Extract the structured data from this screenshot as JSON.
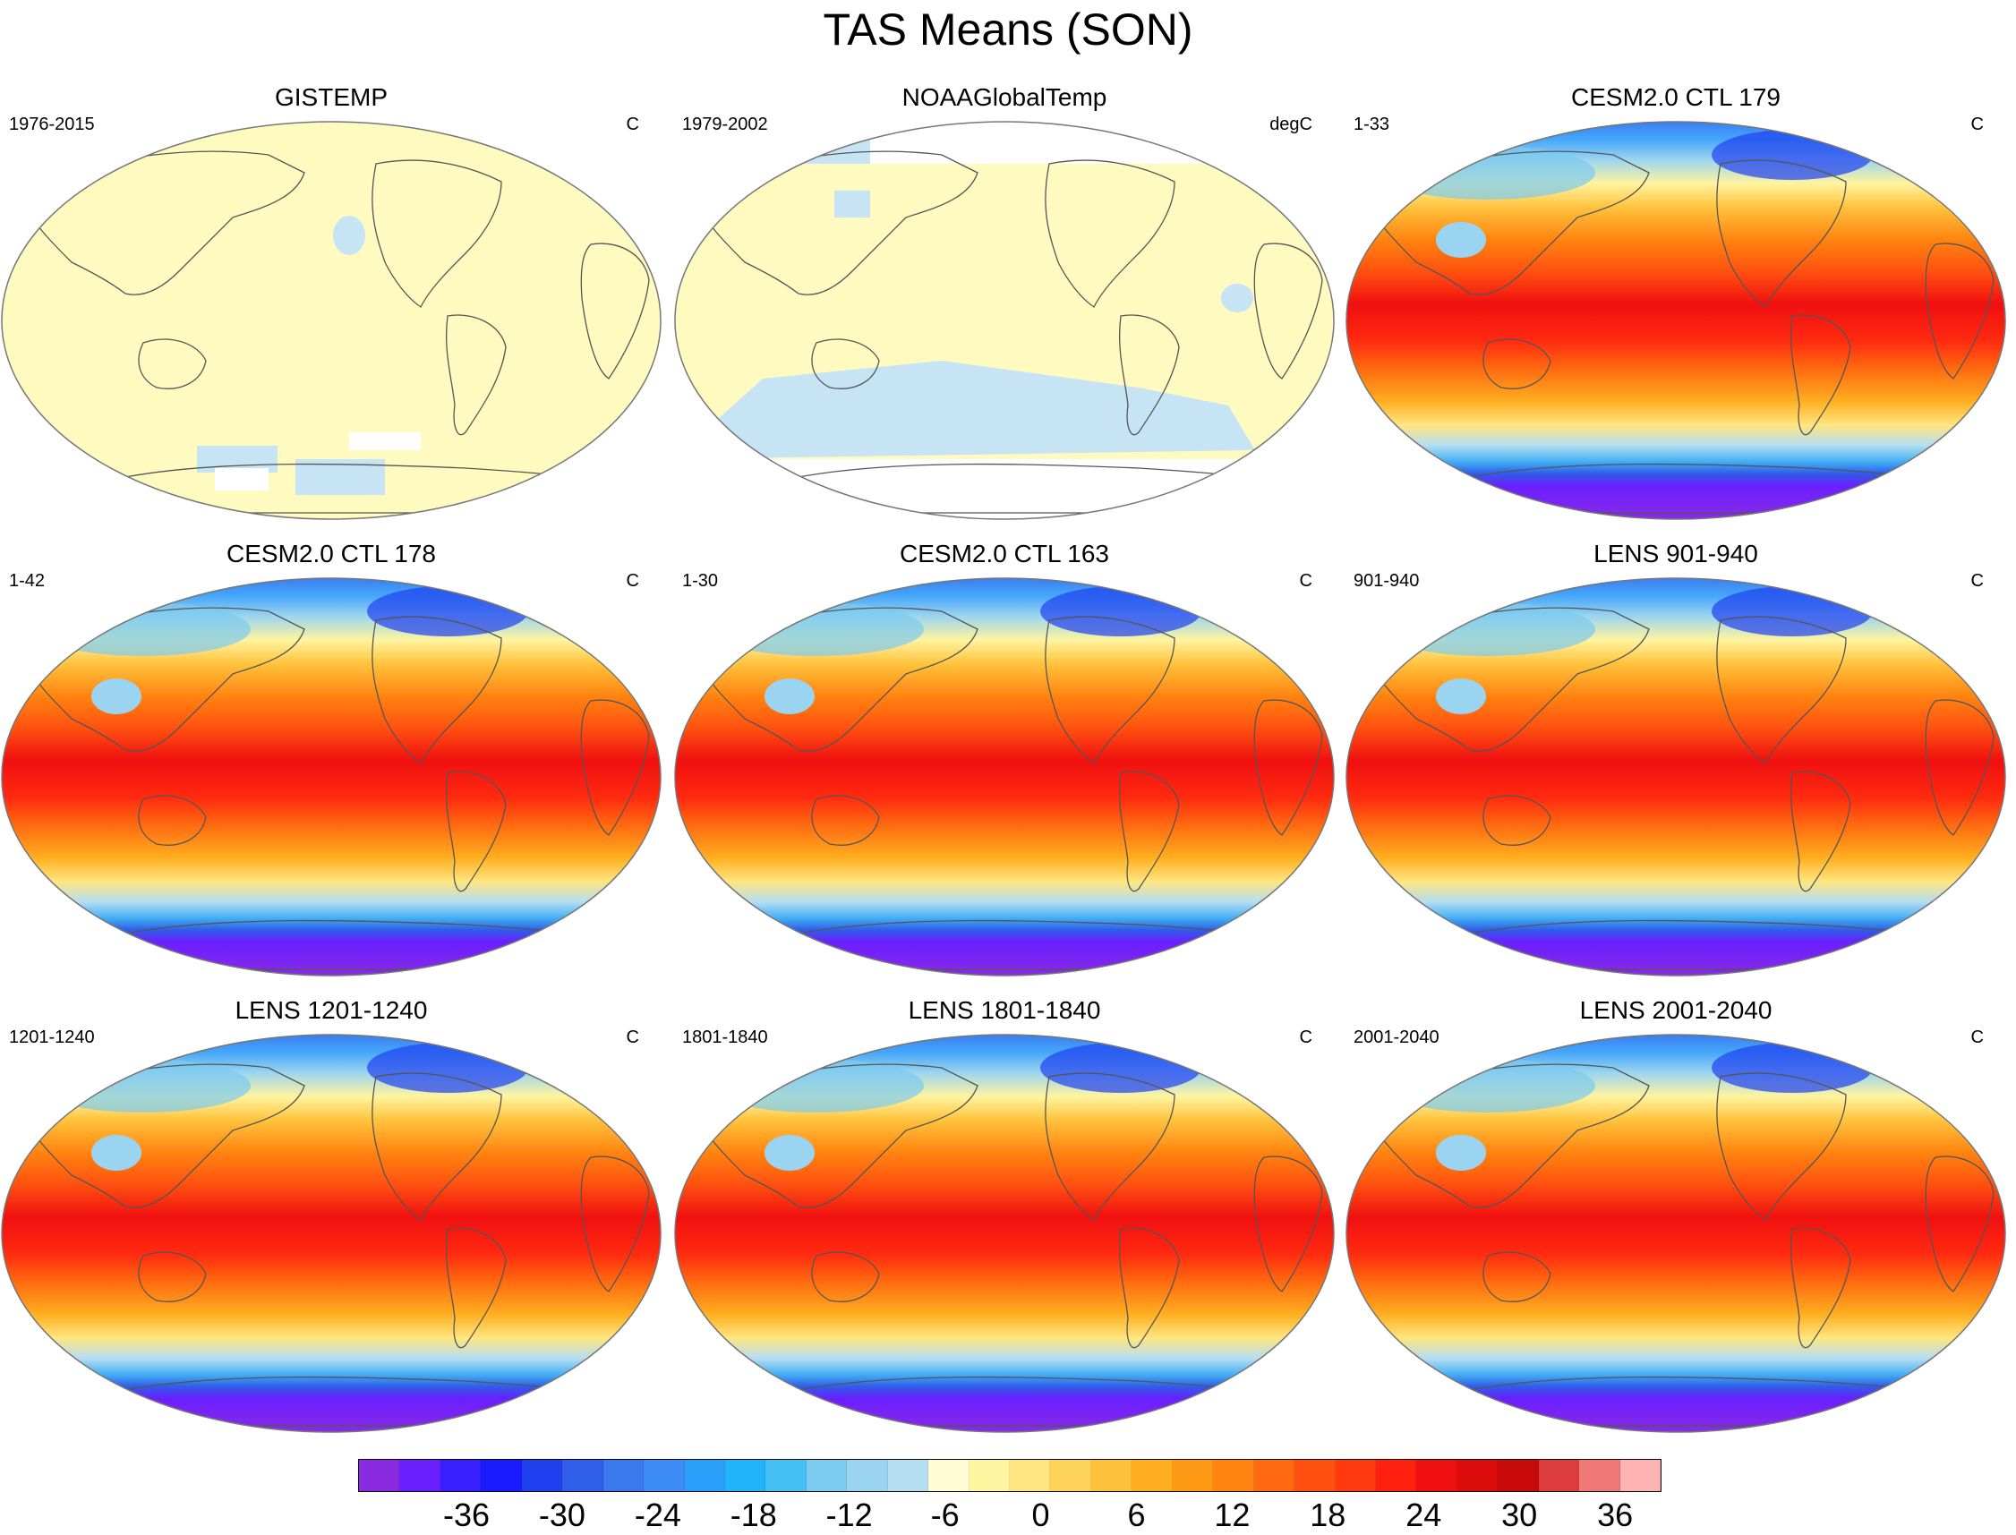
{
  "title": "TAS Means (SON)",
  "panels": [
    {
      "title": "GISTEMP",
      "left": "1976-2015",
      "right": "C",
      "style": "obs1"
    },
    {
      "title": "NOAAGlobalTemp",
      "left": "1979-2002",
      "right": "degC",
      "style": "obs2"
    },
    {
      "title": "CESM2.0 CTL 179",
      "left": "1-33",
      "right": "C",
      "style": "model"
    },
    {
      "title": "CESM2.0 CTL 178",
      "left": "1-42",
      "right": "C",
      "style": "model"
    },
    {
      "title": "CESM2.0 CTL 163",
      "left": "1-30",
      "right": "C",
      "style": "model"
    },
    {
      "title": "LENS 901-940",
      "left": "901-940",
      "right": "C",
      "style": "model"
    },
    {
      "title": "LENS 1201-1240",
      "left": "1201-1240",
      "right": "C",
      "style": "model"
    },
    {
      "title": "LENS 1801-1840",
      "left": "1801-1840",
      "right": "C",
      "style": "model"
    },
    {
      "title": "LENS 2001-2040",
      "left": "2001-2040",
      "right": "C",
      "style": "model"
    }
  ],
  "colorbar": {
    "labels": [
      "-36",
      "-30",
      "-24",
      "-18",
      "-12",
      "-6",
      "0",
      "6",
      "12",
      "18",
      "24",
      "30",
      "36"
    ],
    "colors": [
      "#8a2be2",
      "#6a1fff",
      "#3a1fff",
      "#1a1aff",
      "#2040f0",
      "#2f5ee8",
      "#3a78ee",
      "#3d8cf5",
      "#2aa0fa",
      "#22b4fa",
      "#44c0f4",
      "#7ccbf0",
      "#9ad4f0",
      "#b6def2",
      "#fffbd2",
      "#fff4a0",
      "#ffe680",
      "#ffd45a",
      "#ffc23c",
      "#ffae20",
      "#ff9a14",
      "#ff8410",
      "#ff6a10",
      "#ff5010",
      "#ff3a10",
      "#ff2010",
      "#f01010",
      "#dc0c0c",
      "#c80a0a",
      "#dc3c3c",
      "#f07878",
      "#ffb4b4"
    ],
    "tick_positions": [
      2,
      5,
      8,
      11,
      14,
      17,
      20,
      23,
      26,
      29,
      32,
      35,
      38
    ]
  }
}
